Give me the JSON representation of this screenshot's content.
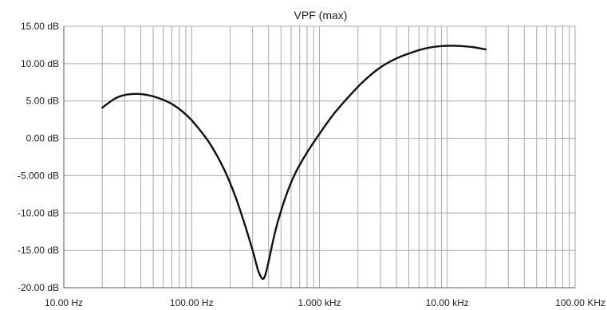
{
  "chart_data": {
    "type": "line",
    "title": "VPF (max)",
    "xlabel": "",
    "ylabel": "",
    "x_scale": "log",
    "xlim": [
      10,
      100000
    ],
    "ylim": [
      -20,
      15
    ],
    "grid": true,
    "x_tick_values": [
      10,
      100,
      1000,
      10000,
      100000
    ],
    "x_tick_labels": [
      "10.00 Hz",
      "100.00 Hz",
      "1.000 kHz",
      "10.00 kHz",
      "100.00 KHz"
    ],
    "y_tick_values": [
      15,
      10,
      5,
      0,
      -5,
      -10,
      -15,
      -20
    ],
    "y_tick_labels": [
      "15.00 dB",
      "10.00 dB",
      "5.00 dB",
      "0.00 dB",
      "-5.000 dB",
      "-10.00 dB",
      "-15.00 dB",
      "-20.00 dB"
    ],
    "series": [
      {
        "color": "#111111",
        "x": [
          20,
          25,
          30,
          37,
          45,
          55,
          70,
          90,
          110,
          140,
          180,
          220,
          260,
          300,
          330,
          350,
          365,
          380,
          400,
          430,
          470,
          550,
          650,
          800,
          1000,
          1300,
          1700,
          2200,
          3000,
          4000,
          5500,
          7000,
          9000,
          11000,
          13000,
          16000,
          20000
        ],
        "y": [
          4.1,
          5.3,
          5.8,
          5.95,
          5.8,
          5.4,
          4.6,
          3.2,
          1.6,
          -0.8,
          -4.2,
          -7.8,
          -11.5,
          -15.0,
          -17.6,
          -18.6,
          -18.8,
          -18.1,
          -16.5,
          -14.0,
          -11.3,
          -7.6,
          -4.6,
          -1.9,
          0.6,
          3.3,
          5.6,
          7.6,
          9.5,
          10.7,
          11.6,
          12.1,
          12.35,
          12.4,
          12.35,
          12.2,
          11.9
        ]
      }
    ]
  }
}
